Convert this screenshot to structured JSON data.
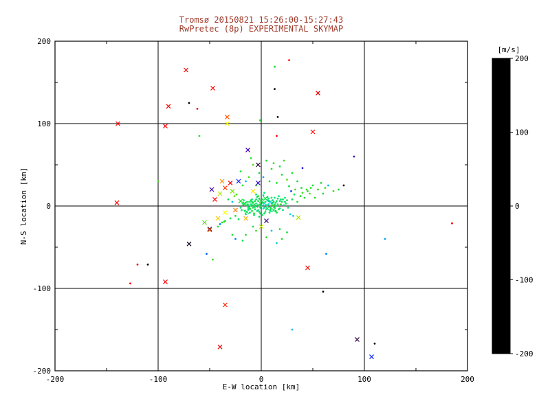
{
  "titles": {
    "line1": "Tromsø 20150821 15:26:00-15:27:43",
    "line2": "RwPretec (8p) EXPERIMENTAL SKYMAP"
  },
  "colors": {
    "title": "#a03a2a",
    "axis": "#000000",
    "cbar_label": "#dd1111",
    "background": "#ffffff"
  },
  "chart_data": {
    "type": "scatter",
    "title": "Tromsø 20150821 15:26:00-15:27:43 / RwPretec (8p) EXPERIMENTAL SKYMAP",
    "xlabel": "E-W location [km]",
    "ylabel": "N-S location [km]",
    "xlim": [
      -200,
      200
    ],
    "ylim": [
      -200,
      200
    ],
    "xticks": [
      -200,
      -100,
      0,
      100,
      200
    ],
    "yticks": [
      -200,
      -100,
      0,
      100,
      200
    ],
    "gridlines": [
      -100,
      0,
      100
    ],
    "grid": true,
    "legend_position": "none",
    "colorbar": {
      "label": "[m/s]",
      "ticks": [
        200,
        100,
        0,
        -100,
        -200
      ],
      "vmin": -200,
      "vmax": 200,
      "stops": [
        [
          0.0,
          "#000000"
        ],
        [
          0.08,
          "#30004a"
        ],
        [
          0.18,
          "#4400cc"
        ],
        [
          0.28,
          "#0022ff"
        ],
        [
          0.38,
          "#00aaff"
        ],
        [
          0.46,
          "#00e8d0"
        ],
        [
          0.52,
          "#00e87c"
        ],
        [
          0.62,
          "#22dd22"
        ],
        [
          0.72,
          "#a8e800"
        ],
        [
          0.78,
          "#ffff00"
        ],
        [
          0.88,
          "#ff8800"
        ],
        [
          1.0,
          "#ff0000"
        ]
      ]
    },
    "marker_codes": {
      "0": "dot",
      "1": "x"
    },
    "points": [
      [
        -2,
        1,
        10,
        0
      ],
      [
        0,
        0,
        20,
        0
      ],
      [
        3,
        -2,
        5,
        0
      ],
      [
        -5,
        3,
        15,
        0
      ],
      [
        2,
        4,
        25,
        0
      ],
      [
        6,
        1,
        0,
        0
      ],
      [
        -8,
        -2,
        30,
        0
      ],
      [
        10,
        3,
        12,
        0
      ],
      [
        -3,
        -5,
        8,
        0
      ],
      [
        5,
        -4,
        18,
        0
      ],
      [
        8,
        6,
        22,
        0
      ],
      [
        -10,
        2,
        5,
        0
      ],
      [
        12,
        -1,
        15,
        0
      ],
      [
        -6,
        6,
        28,
        0
      ],
      [
        1,
        8,
        10,
        0
      ],
      [
        4,
        -7,
        20,
        0
      ],
      [
        -12,
        -4,
        12,
        0
      ],
      [
        14,
        4,
        8,
        0
      ],
      [
        -1,
        -9,
        25,
        0
      ],
      [
        7,
        9,
        15,
        0
      ],
      [
        16,
        2,
        30,
        0
      ],
      [
        -14,
        1,
        10,
        0
      ],
      [
        9,
        -6,
        5,
        0
      ],
      [
        -4,
        11,
        18,
        0
      ],
      [
        11,
        7,
        22,
        0
      ],
      [
        18,
        -3,
        12,
        0
      ],
      [
        -16,
        -6,
        15,
        0
      ],
      [
        13,
        10,
        8,
        0
      ],
      [
        -7,
        -11,
        20,
        0
      ],
      [
        20,
        5,
        25,
        0
      ],
      [
        2,
        13,
        10,
        0
      ],
      [
        -18,
        3,
        15,
        0
      ],
      [
        15,
        -8,
        30,
        0
      ],
      [
        -9,
        8,
        5,
        0
      ],
      [
        22,
        1,
        18,
        0
      ],
      [
        -2,
        -13,
        22,
        0
      ],
      [
        17,
        12,
        12,
        0
      ],
      [
        -20,
        -2,
        8,
        0
      ],
      [
        19,
        8,
        15,
        0
      ],
      [
        -11,
        -8,
        25,
        0
      ],
      [
        24,
        3,
        20,
        0
      ],
      [
        -5,
        14,
        10,
        0
      ],
      [
        21,
        -5,
        15,
        0
      ],
      [
        -13,
        5,
        28,
        0
      ],
      [
        23,
        10,
        5,
        0
      ],
      [
        -15,
        -10,
        18,
        0
      ],
      [
        25,
        7,
        22,
        0
      ],
      [
        3,
        16,
        12,
        0
      ],
      [
        -17,
        7,
        8,
        0
      ],
      [
        26,
        -2,
        15,
        0
      ],
      [
        -1,
        2,
        35,
        0
      ],
      [
        2,
        -3,
        -10,
        0
      ],
      [
        4,
        5,
        40,
        0
      ],
      [
        -6,
        -1,
        15,
        0
      ],
      [
        7,
        2,
        -15,
        0
      ],
      [
        9,
        -4,
        30,
        0
      ],
      [
        -9,
        5,
        20,
        0
      ],
      [
        11,
        1,
        45,
        0
      ],
      [
        -4,
        -6,
        10,
        0
      ],
      [
        6,
        7,
        25,
        0
      ],
      [
        13,
        -2,
        35,
        0
      ],
      [
        -11,
        -3,
        50,
        0
      ],
      [
        8,
        -8,
        15,
        0
      ],
      [
        -2,
        9,
        30,
        0
      ],
      [
        15,
        6,
        20,
        0
      ],
      [
        -13,
        2,
        40,
        0
      ],
      [
        10,
        10,
        10,
        0
      ],
      [
        17,
        -4,
        25,
        0
      ],
      [
        -7,
        -9,
        45,
        0
      ],
      [
        12,
        5,
        30,
        0
      ],
      [
        -15,
        4,
        15,
        0
      ],
      [
        19,
        2,
        50,
        0
      ],
      [
        1,
        -11,
        20,
        0
      ],
      [
        -10,
        7,
        35,
        0
      ],
      [
        21,
        8,
        25,
        0
      ],
      [
        14,
        -6,
        40,
        0
      ],
      [
        -19,
        -5,
        30,
        0
      ],
      [
        16,
        9,
        15,
        0
      ],
      [
        -3,
        12,
        45,
        0
      ],
      [
        23,
        5,
        20,
        0
      ],
      [
        -1,
        -2,
        22,
        0
      ],
      [
        1,
        4,
        18,
        0
      ],
      [
        -3,
        6,
        28,
        0
      ],
      [
        5,
        1,
        12,
        0
      ],
      [
        -6,
        -4,
        32,
        0
      ],
      [
        7,
        6,
        8,
        0
      ],
      [
        -8,
        1,
        24,
        0
      ],
      [
        9,
        -2,
        38,
        0
      ],
      [
        -11,
        5,
        14,
        0
      ],
      [
        11,
        4,
        26,
        0
      ],
      [
        -2,
        -7,
        20,
        0
      ],
      [
        13,
        2,
        34,
        0
      ],
      [
        -5,
        8,
        16,
        0
      ],
      [
        3,
        -9,
        28,
        0
      ],
      [
        -13,
        -1,
        10,
        0
      ],
      [
        15,
        0,
        22,
        0
      ],
      [
        -17,
        2,
        30,
        0
      ],
      [
        6,
        11,
        18,
        0
      ],
      [
        -9,
        -6,
        26,
        0
      ],
      [
        18,
        6,
        12,
        0
      ],
      [
        -5,
        0,
        25,
        1
      ],
      [
        3,
        3,
        -20,
        1
      ],
      [
        -8,
        4,
        30,
        1
      ],
      [
        6,
        -3,
        15,
        1
      ],
      [
        0,
        6,
        40,
        1
      ],
      [
        -12,
        -2,
        20,
        1
      ],
      [
        9,
        5,
        -30,
        1
      ],
      [
        -16,
        3,
        35,
        1
      ],
      [
        12,
        -5,
        25,
        1
      ],
      [
        -20,
        6,
        45,
        1
      ],
      [
        4,
        9,
        30,
        1
      ],
      [
        -14,
        -7,
        20,
        1
      ],
      [
        30,
        8,
        35,
        0
      ],
      [
        -25,
        -12,
        40,
        0
      ],
      [
        32,
        14,
        20,
        0
      ],
      [
        -28,
        5,
        -40,
        0
      ],
      [
        35,
        5,
        50,
        0
      ],
      [
        28,
        -10,
        -20,
        0
      ],
      [
        -30,
        -15,
        30,
        0
      ],
      [
        38,
        12,
        45,
        0
      ],
      [
        -32,
        8,
        25,
        0
      ],
      [
        40,
        16,
        55,
        0
      ],
      [
        -35,
        -18,
        35,
        0
      ],
      [
        42,
        10,
        40,
        0
      ],
      [
        33,
        20,
        60,
        0
      ],
      [
        -38,
        -20,
        45,
        0
      ],
      [
        45,
        18,
        30,
        0
      ],
      [
        -40,
        -22,
        -60,
        0
      ],
      [
        48,
        22,
        50,
        0
      ],
      [
        36,
        -14,
        90,
        1
      ],
      [
        -42,
        -25,
        40,
        0
      ],
      [
        50,
        25,
        35,
        0
      ],
      [
        29,
        18,
        -80,
        0
      ],
      [
        -26,
        12,
        70,
        0
      ],
      [
        44,
        20,
        55,
        0
      ],
      [
        -22,
        -16,
        20,
        0
      ],
      [
        31,
        -12,
        -30,
        0
      ],
      [
        47,
        15,
        65,
        0
      ],
      [
        -36,
        -19,
        50,
        0
      ],
      [
        39,
        22,
        40,
        0
      ],
      [
        27,
        24,
        30,
        0
      ],
      [
        -24,
        14,
        60,
        0
      ],
      [
        -5,
        25,
        45,
        0
      ],
      [
        8,
        30,
        35,
        0
      ],
      [
        -12,
        35,
        55,
        0
      ],
      [
        15,
        28,
        40,
        0
      ],
      [
        -2,
        40,
        30,
        0
      ],
      [
        10,
        45,
        50,
        0
      ],
      [
        -8,
        50,
        60,
        0
      ],
      [
        5,
        55,
        45,
        0
      ],
      [
        -15,
        30,
        -40,
        0
      ],
      [
        20,
        38,
        35,
        0
      ],
      [
        12,
        52,
        55,
        0
      ],
      [
        -20,
        42,
        40,
        0
      ],
      [
        25,
        32,
        65,
        0
      ],
      [
        -10,
        58,
        50,
        0
      ],
      [
        18,
        48,
        30,
        0
      ],
      [
        2,
        35,
        -50,
        0
      ],
      [
        30,
        40,
        45,
        0
      ],
      [
        -18,
        25,
        35,
        0
      ],
      [
        22,
        55,
        60,
        0
      ],
      [
        35,
        30,
        40,
        0
      ],
      [
        -8,
        -25,
        30,
        0
      ],
      [
        10,
        -30,
        -40,
        0
      ],
      [
        -15,
        -35,
        45,
        0
      ],
      [
        18,
        -28,
        35,
        0
      ],
      [
        -25,
        -40,
        -60,
        0
      ],
      [
        5,
        -38,
        50,
        0
      ],
      [
        25,
        -32,
        40,
        0
      ],
      [
        -18,
        -42,
        30,
        0
      ],
      [
        15,
        -45,
        -30,
        0
      ],
      [
        -5,
        -30,
        55,
        0
      ],
      [
        20,
        -40,
        45,
        0
      ],
      [
        -28,
        -35,
        35,
        0
      ],
      [
        55,
        20,
        50,
        0
      ],
      [
        60,
        15,
        40,
        0
      ],
      [
        65,
        25,
        -40,
        0
      ],
      [
        70,
        18,
        55,
        0
      ],
      [
        58,
        28,
        35,
        0
      ],
      [
        52,
        10,
        45,
        0
      ],
      [
        62,
        22,
        60,
        0
      ],
      [
        75,
        20,
        40,
        0
      ],
      [
        -30,
        28,
        200,
        1
      ],
      [
        -35,
        22,
        180,
        1
      ],
      [
        -8,
        18,
        120,
        1
      ],
      [
        -25,
        -5,
        160,
        1
      ],
      [
        -40,
        15,
        90,
        1
      ],
      [
        -45,
        8,
        200,
        1
      ],
      [
        -15,
        -15,
        140,
        1
      ],
      [
        5,
        -18,
        -150,
        1
      ],
      [
        -35,
        -8,
        110,
        1
      ],
      [
        -50,
        -28,
        -170,
        1
      ],
      [
        -3,
        28,
        -120,
        1
      ],
      [
        -28,
        18,
        75,
        1
      ],
      [
        -42,
        -15,
        130,
        1
      ],
      [
        0,
        -25,
        95,
        1
      ],
      [
        -22,
        30,
        -90,
        1
      ],
      [
        -38,
        30,
        150,
        1
      ],
      [
        -55,
        -20,
        60,
        1
      ],
      [
        -48,
        20,
        -140,
        1
      ],
      [
        -73,
        165,
        200,
        1
      ],
      [
        27,
        177,
        195,
        0
      ],
      [
        13,
        169,
        40,
        0
      ],
      [
        -47,
        143,
        200,
        1
      ],
      [
        13,
        142,
        -195,
        0
      ],
      [
        55,
        137,
        200,
        1
      ],
      [
        -90,
        121,
        200,
        1
      ],
      [
        -70,
        125,
        -200,
        0
      ],
      [
        -62,
        118,
        200,
        0
      ],
      [
        -33,
        108,
        170,
        1
      ],
      [
        -139,
        100,
        200,
        1
      ],
      [
        -93,
        97,
        200,
        1
      ],
      [
        -33,
        100,
        110,
        1
      ],
      [
        -1,
        104,
        45,
        0
      ],
      [
        16,
        108,
        -190,
        0
      ],
      [
        15,
        85,
        200,
        0
      ],
      [
        -13,
        68,
        -130,
        1
      ],
      [
        -3,
        50,
        -180,
        1
      ],
      [
        40,
        46,
        -110,
        0
      ],
      [
        80,
        25,
        -200,
        0
      ],
      [
        -140,
        4,
        200,
        1
      ],
      [
        185,
        -21,
        200,
        0
      ],
      [
        -93,
        -92,
        200,
        1
      ],
      [
        -127,
        -94,
        200,
        0
      ],
      [
        -70,
        -46,
        -190,
        1
      ],
      [
        -50,
        -29,
        170,
        1
      ],
      [
        -110,
        -71,
        -200,
        0
      ],
      [
        -120,
        -71,
        200,
        0
      ],
      [
        -53,
        -58,
        -70,
        0
      ],
      [
        -47,
        -65,
        55,
        0
      ],
      [
        60,
        -104,
        -195,
        0
      ],
      [
        -40,
        -171,
        200,
        1
      ],
      [
        93,
        -162,
        -170,
        1
      ],
      [
        110,
        -167,
        -200,
        0
      ],
      [
        107,
        -183,
        -90,
        1
      ],
      [
        63,
        -58,
        -60,
        0
      ],
      [
        45,
        -75,
        200,
        1
      ],
      [
        -35,
        -120,
        190,
        1
      ],
      [
        30,
        -150,
        -40,
        0
      ],
      [
        -60,
        85,
        35,
        0
      ],
      [
        90,
        60,
        -140,
        0
      ],
      [
        50,
        90,
        200,
        1
      ],
      [
        -100,
        30,
        60,
        0
      ],
      [
        120,
        -40,
        -50,
        0
      ]
    ]
  }
}
